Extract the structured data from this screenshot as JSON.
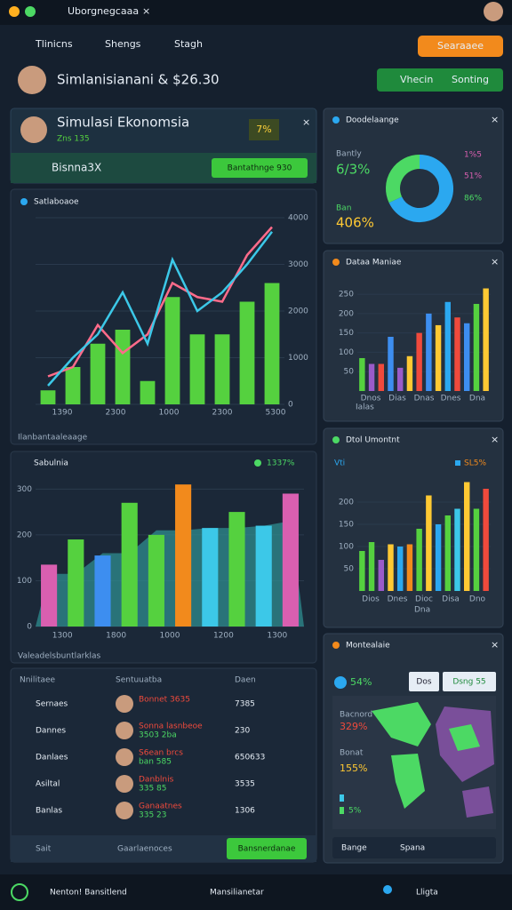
{
  "header": {
    "tab_title": "Uborgnegcaaa",
    "nav": [
      "Tlinicns",
      "Shengs",
      "Stagh"
    ],
    "search_button": "Searaaee"
  },
  "summary": {
    "title": "Simlanisianani & $26.30",
    "buttons": [
      "Vhecin",
      "Sonting"
    ]
  },
  "sim_panel": {
    "title": "Simulasi Ekonomsia",
    "subtitle": "Zns 135",
    "badge": "7%",
    "label": "Bisnna3X",
    "button": "Bantathnge 930"
  },
  "line_panel": {
    "title": "Satlaboaoe",
    "footer": "Ilanbantaaleaage",
    "chart": {
      "type": "line",
      "ylim": [
        0,
        4000
      ],
      "yticks": [
        0,
        1000,
        2000,
        3000,
        4000
      ],
      "x_labels": [
        "1390",
        "2300",
        "1000",
        "2300",
        "5300"
      ],
      "series": [
        {
          "kind": "bar",
          "color": "#55d13f",
          "values": [
            300,
            800,
            1300,
            1600,
            500,
            2300,
            1500,
            1500,
            2200,
            2600
          ]
        },
        {
          "kind": "line",
          "color": "#ff6b8a",
          "values": [
            600,
            800,
            1700,
            1100,
            1500,
            2600,
            2300,
            2200,
            3200,
            3800
          ]
        },
        {
          "kind": "line",
          "color": "#3cc8e8",
          "values": [
            400,
            1000,
            1500,
            2400,
            1300,
            3100,
            2000,
            2400,
            3000,
            3700
          ]
        }
      ]
    }
  },
  "area_panel": {
    "title": "Sabulnia",
    "badge": "1337%",
    "footer": "Valeadelsbuntlarklas",
    "chart": {
      "type": "bar",
      "ylim": [
        0,
        320
      ],
      "yticks": [
        0,
        100,
        200,
        300
      ],
      "x_labels": [
        "1300",
        "1800",
        "1000",
        "1200",
        "1300"
      ],
      "series": [
        {
          "kind": "area",
          "color": "#2f8c8f",
          "values": [
            115,
            115,
            160,
            160,
            210,
            210,
            215,
            215,
            220,
            230
          ]
        },
        {
          "kind": "bar",
          "color": "#55d13f",
          "values": [
            135,
            190,
            155,
            270,
            200,
            310,
            215,
            250,
            220,
            290
          ]
        }
      ],
      "bar_colors": [
        "#d95fb0",
        "#55d13f",
        "#3d8ef0",
        "#55d13f",
        "#55d13f",
        "#f28a1c",
        "#3cc8e8",
        "#55d13f",
        "#3cc8e8",
        "#d95fb0"
      ]
    }
  },
  "table": {
    "columns": [
      "Nnilitaee",
      "Sentuuatba",
      "Daen"
    ],
    "rows": [
      {
        "name": "Sernaes",
        "line1": "Bonnet 3635",
        "line2": "",
        "value": "7385"
      },
      {
        "name": "Dannes",
        "line1": "Sonna lasnbeoe",
        "line2": "3503 2ba",
        "value": "230"
      },
      {
        "name": "Danlaes",
        "line1": "S6ean brcs",
        "line2": "ban 585",
        "value": "650633"
      },
      {
        "name": "Asiltal",
        "line1": "Danblnis",
        "line2": "335 85",
        "value": "3535"
      },
      {
        "name": "Banlas",
        "line1": "Ganaatnes",
        "line2": "335 23",
        "value": "1306"
      }
    ],
    "footer_left": "Sait",
    "footer_mid": "Gaarlaenoces",
    "footer_button": "Bansnerdanae"
  },
  "donut_panel": {
    "title": "Doodelaange",
    "labels": [
      "Bantly",
      "6/3%",
      "Ban",
      "406%",
      "1%5",
      "51%",
      "86%"
    ],
    "chart": {
      "type": "pie",
      "values": [
        68,
        32
      ],
      "colors": [
        "#2ba8f0",
        "#4cd964"
      ]
    }
  },
  "bar_panel": {
    "title": "Dataa Maniae",
    "x_labels": [
      "Dnos",
      "Dias",
      "Dnas",
      "Dnes",
      "Dna"
    ],
    "footer": "Ialas",
    "chart": {
      "type": "bar",
      "ylim": [
        0,
        280
      ],
      "yticks": [
        50,
        100,
        150,
        200,
        250
      ],
      "values": [
        85,
        70,
        70,
        140,
        60,
        90,
        150,
        200,
        170,
        230,
        190,
        175,
        225,
        265
      ],
      "colors": [
        "#55d13f",
        "#9a5bc9",
        "#f04a3c",
        "#3d8ef0",
        "#9a5bc9",
        "#ffc933",
        "#f04a3c",
        "#3d8ef0",
        "#ffc933",
        "#2ba8f0",
        "#f04a3c",
        "#3d8ef0",
        "#55d13f",
        "#ffc933"
      ]
    }
  },
  "bar_panel2": {
    "title": "Dtol Umontnt",
    "legend": [
      "Vti",
      "SL5%"
    ],
    "x_labels": [
      "Dios",
      "Dnes",
      "Dioc",
      "Disa",
      "Dno"
    ],
    "footer": "Dna",
    "chart": {
      "type": "bar",
      "ylim": [
        0,
        280
      ],
      "yticks": [
        50,
        100,
        150,
        200
      ],
      "values": [
        90,
        110,
        70,
        105,
        100,
        105,
        140,
        215,
        150,
        170,
        185,
        245,
        185,
        230
      ],
      "colors": [
        "#55d13f",
        "#55d13f",
        "#9a5bc9",
        "#ffc933",
        "#2ba8f0",
        "#f28a1c",
        "#55d13f",
        "#ffc933",
        "#2ba8f0",
        "#55d13f",
        "#3cc8e8",
        "#ffc933",
        "#55d13f",
        "#f04a3c"
      ]
    }
  },
  "map_panel": {
    "title": "Montealaie",
    "stat": "54%",
    "buttons": [
      "Dos",
      "Dsng 55"
    ],
    "labels": [
      "Bacnord",
      "329%",
      "Bonat",
      "155%",
      "5%"
    ],
    "select": [
      "Bange",
      "Spana"
    ]
  },
  "bottom_nav": [
    "Nenton! Bansitlend",
    "Mansilianetar",
    "Lligta"
  ]
}
